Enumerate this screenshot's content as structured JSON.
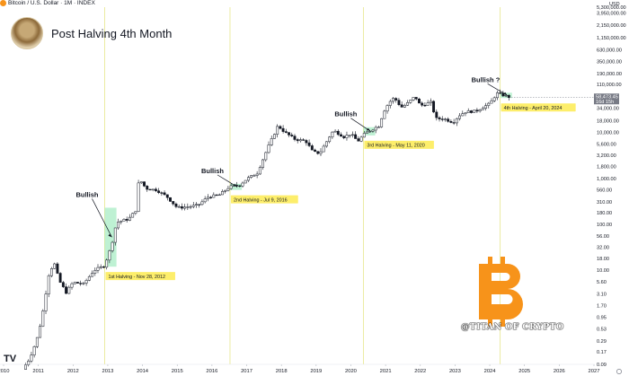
{
  "header": {
    "symbol_line": "Bitcoin / U.S. Dollar · 1M · INDEX",
    "title": "Post Halving 4th Month"
  },
  "currency_label": "USD",
  "watermark": "@TITAN OF CRYPTO",
  "colors": {
    "up": "#26a69a",
    "down": "#131722",
    "halving_line": "#e6e68a",
    "highlight": "#a8ecc4",
    "label_bg": "#fdee6b",
    "price_tag": "#787b86",
    "bitcoin_orange": "#f7931a"
  },
  "chart_data": {
    "type": "candlestick",
    "scale": "log",
    "interval": "1M",
    "ylim": [
      0.09,
      5300000
    ],
    "xlim": [
      2010.0,
      2027.0
    ],
    "y_ticks": [
      "5,300,000.00",
      "3,950,000.00",
      "2,150,000.00",
      "1,150,000.00",
      "630,000.00",
      "350,000.00",
      "190,000.00",
      "110,000.00",
      "58,473.45",
      "34,000.00",
      "18,000.00",
      "10,000.00",
      "5,600.00",
      "3,200.00",
      "1,800.00",
      "1,000.00",
      "560.00",
      "310.00",
      "180.00",
      "100.00",
      "56.00",
      "32.00",
      "18.00",
      "10.00",
      "5.60",
      "3.10",
      "1.70",
      "0.95",
      "0.53",
      "0.29",
      "0.17",
      "0.09"
    ],
    "y_tick_values": [
      5300000,
      3950000,
      2150000,
      1150000,
      630000,
      350000,
      190000,
      110000,
      null,
      34000,
      18000,
      10000,
      5600,
      3200,
      1800,
      1000,
      560,
      310,
      180,
      100,
      56,
      32,
      18,
      10,
      5.6,
      3.1,
      1.7,
      0.95,
      0.53,
      0.29,
      0.17,
      0.09
    ],
    "x_ticks": [
      {
        "label": "2010",
        "value": 2010
      },
      {
        "label": "2011",
        "value": 2011
      },
      {
        "label": "2012",
        "value": 2012
      },
      {
        "label": "2013",
        "value": 2013
      },
      {
        "label": "2014",
        "value": 2014
      },
      {
        "label": "2015",
        "value": 2015
      },
      {
        "label": "2016",
        "value": 2016
      },
      {
        "label": "2017",
        "value": 2017
      },
      {
        "label": "2018",
        "value": 2018
      },
      {
        "label": "2019",
        "value": 2019
      },
      {
        "label": "2020",
        "value": 2020
      },
      {
        "label": "2021",
        "value": 2021
      },
      {
        "label": "2022",
        "value": 2022
      },
      {
        "label": "2023",
        "value": 2023
      },
      {
        "label": "2024",
        "value": 2024
      },
      {
        "label": "2025",
        "value": 2025
      },
      {
        "label": "2026",
        "value": 2026
      },
      {
        "label": "2027",
        "value": 2027
      }
    ],
    "price_tag": {
      "value": 58473.45,
      "label": "58,473.45",
      "countdown": "16d 15h"
    },
    "halvings": [
      {
        "date": 2012.91,
        "label": "1st Halving - Nov 28, 2012",
        "bull_label": "Bullish",
        "zone_end": 2013.25,
        "zone_low": 12,
        "zone_high": 230
      },
      {
        "date": 2016.52,
        "label": "2nd Halving - Jul 9, 2016",
        "bull_label": "Bullish",
        "zone_end": 2016.86,
        "zone_low": 560,
        "zone_high": 760
      },
      {
        "date": 2020.36,
        "label": "3rd Halving - May 11, 2020",
        "bull_label": "Bullish",
        "zone_end": 2020.7,
        "zone_low": 8600,
        "zone_high": 13000
      },
      {
        "date": 2024.3,
        "label": "4th Halving - April 20, 2024",
        "bull_label": "Bullish ?",
        "zone_end": 2024.64,
        "zone_low": 56000,
        "zone_high": 73000
      }
    ],
    "anchors": [
      [
        2010.55,
        0.07
      ],
      [
        2010.75,
        0.12
      ],
      [
        2010.95,
        0.3
      ],
      [
        2011.1,
        0.9
      ],
      [
        2011.3,
        8
      ],
      [
        2011.45,
        15
      ],
      [
        2011.6,
        6
      ],
      [
        2011.8,
        3.3
      ],
      [
        2012.0,
        5.5
      ],
      [
        2012.3,
        5
      ],
      [
        2012.6,
        10
      ],
      [
        2012.9,
        12.5
      ],
      [
        2013.1,
        33
      ],
      [
        2013.25,
        110
      ],
      [
        2013.4,
        120
      ],
      [
        2013.6,
        130
      ],
      [
        2013.8,
        200
      ],
      [
        2013.9,
        1000
      ],
      [
        2014.1,
        600
      ],
      [
        2014.4,
        560
      ],
      [
        2014.7,
        400
      ],
      [
        2015.0,
        230
      ],
      [
        2015.3,
        240
      ],
      [
        2015.6,
        260
      ],
      [
        2015.9,
        400
      ],
      [
        2016.2,
        430
      ],
      [
        2016.5,
        650
      ],
      [
        2016.8,
        720
      ],
      [
        2017.0,
        970
      ],
      [
        2017.3,
        1300
      ],
      [
        2017.6,
        4500
      ],
      [
        2017.9,
        14000
      ],
      [
        2018.1,
        10000
      ],
      [
        2018.4,
        7000
      ],
      [
        2018.7,
        6500
      ],
      [
        2018.9,
        3800
      ],
      [
        2019.1,
        3500
      ],
      [
        2019.4,
        8500
      ],
      [
        2019.5,
        11000
      ],
      [
        2019.8,
        8000
      ],
      [
        2020.0,
        9300
      ],
      [
        2020.2,
        6400
      ],
      [
        2020.4,
        9400
      ],
      [
        2020.6,
        11500
      ],
      [
        2020.8,
        13800
      ],
      [
        2020.95,
        29000
      ],
      [
        2021.1,
        45000
      ],
      [
        2021.25,
        57000
      ],
      [
        2021.45,
        35000
      ],
      [
        2021.6,
        41000
      ],
      [
        2021.85,
        61000
      ],
      [
        2022.0,
        38000
      ],
      [
        2022.3,
        45000
      ],
      [
        2022.45,
        20000
      ],
      [
        2022.7,
        19500
      ],
      [
        2022.95,
        16500
      ],
      [
        2023.1,
        23000
      ],
      [
        2023.3,
        28000
      ],
      [
        2023.6,
        29000
      ],
      [
        2023.85,
        37000
      ],
      [
        2024.0,
        42000
      ],
      [
        2024.2,
        71000
      ],
      [
        2024.4,
        64000
      ],
      [
        2024.55,
        59000
      ],
      [
        2024.62,
        58473
      ]
    ]
  }
}
